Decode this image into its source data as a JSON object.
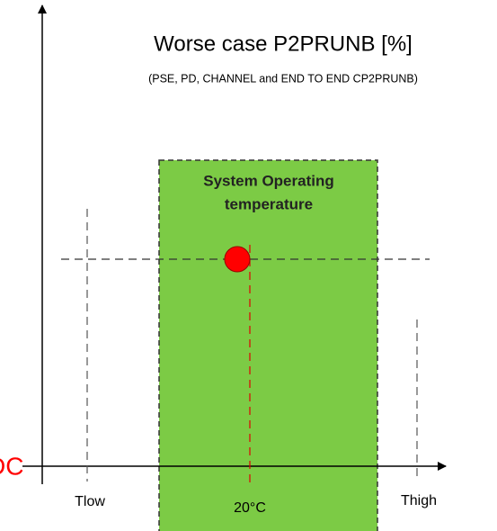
{
  "title": "Worse case P2PRUNB [%]",
  "subtitle": "(PSE, PD, CHANNEL and  END TO END CP2PRUNB)",
  "zone": {
    "line1": "System Operating",
    "line2": "temperature"
  },
  "labels": {
    "low": "Tlow",
    "mid": "20°C",
    "high": "Thigh"
  },
  "side_text": "DC"
}
